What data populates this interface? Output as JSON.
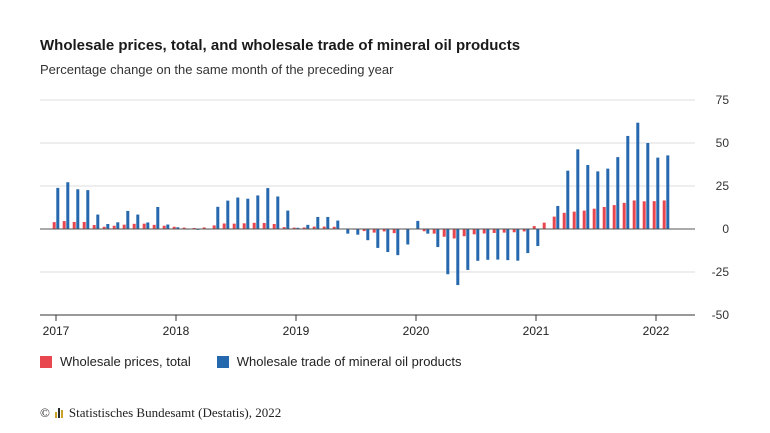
{
  "chart_data": {
    "type": "bar",
    "title": "Wholesale prices, total, and wholesale trade of mineral oil products",
    "subtitle": "Percentage change on the same month of the preceding year",
    "ylim": [
      -50,
      75
    ],
    "yticks": [
      75,
      50,
      25,
      0,
      -25,
      -50
    ],
    "year_labels": [
      "2017",
      "2018",
      "2019",
      "2020",
      "2021",
      "2022"
    ],
    "grid": true,
    "legend_position": "bottom-left",
    "categories": [
      "2017-01",
      "2017-02",
      "2017-03",
      "2017-04",
      "2017-05",
      "2017-06",
      "2017-07",
      "2017-08",
      "2017-09",
      "2017-10",
      "2017-11",
      "2017-12",
      "2018-01",
      "2018-02",
      "2018-03",
      "2018-04",
      "2018-05",
      "2018-06",
      "2018-07",
      "2018-08",
      "2018-09",
      "2018-10",
      "2018-11",
      "2018-12",
      "2019-01",
      "2019-02",
      "2019-03",
      "2019-04",
      "2019-05",
      "2019-06",
      "2019-07",
      "2019-08",
      "2019-09",
      "2019-10",
      "2019-11",
      "2019-12",
      "2020-01",
      "2020-02",
      "2020-03",
      "2020-04",
      "2020-05",
      "2020-06",
      "2020-07",
      "2020-08",
      "2020-09",
      "2020-10",
      "2020-11",
      "2020-12",
      "2021-01",
      "2021-02",
      "2021-03",
      "2021-04",
      "2021-05",
      "2021-06",
      "2021-07",
      "2021-08",
      "2021-09",
      "2021-10",
      "2021-11",
      "2021-12",
      "2022-01",
      "2022-02"
    ],
    "series": [
      {
        "name": "Wholesale prices, total",
        "color": "#e8474f",
        "values": [
          4,
          4.6,
          4.1,
          4.1,
          2.3,
          1.3,
          1.9,
          2.5,
          3,
          3.1,
          2.4,
          1.9,
          1.3,
          0.8,
          0.6,
          0.9,
          2.1,
          3.2,
          3.1,
          3.3,
          3.6,
          3.5,
          2.9,
          1.1,
          0.8,
          0.9,
          1.4,
          1.4,
          1.3,
          0.3,
          -0.2,
          -1.2,
          -2.1,
          -1.4,
          -2.4,
          -0.3,
          0.1,
          -1.3,
          -2.7,
          -4.5,
          -5.5,
          -4.2,
          -3.1,
          -2.6,
          -2.3,
          -2.1,
          -1.9,
          -1.4,
          1.7,
          3.7,
          7.2,
          9.4,
          10.1,
          10.7,
          11.8,
          12.8,
          13.9,
          15.2,
          16.6,
          16.1,
          16.2,
          16.6
        ]
      },
      {
        "name": "Wholesale trade of mineral oil products",
        "color": "#2668ad",
        "values": [
          23.9,
          27.2,
          23.1,
          22.6,
          8.4,
          2.9,
          3.9,
          10.5,
          8.4,
          3.8,
          12.8,
          2.6,
          1,
          0,
          -0.5,
          0,
          12.9,
          16.5,
          18.3,
          17.6,
          19.5,
          23.8,
          18.9,
          10.7,
          0.7,
          2.4,
          7,
          7,
          4.9,
          -2.7,
          -3.3,
          -6.5,
          -11,
          -13.4,
          -15.2,
          -9,
          4.7,
          -2.7,
          -10.5,
          -26.3,
          -32.6,
          -23.8,
          -18.5,
          -17.9,
          -17.8,
          -18.1,
          -18.4,
          -14,
          -9.9,
          0.1,
          13.4,
          33.9,
          46.3,
          37.2,
          33.5,
          35.1,
          41.8,
          54.1,
          61.8,
          50,
          41.5,
          42.8
        ]
      }
    ]
  },
  "legend": {
    "item1_label": "Wholesale prices, total",
    "item2_label": "Wholesale trade of mineral oil products"
  },
  "source": {
    "copyright": "©",
    "text": "Statistisches Bundesamt (Destatis), 2022"
  }
}
